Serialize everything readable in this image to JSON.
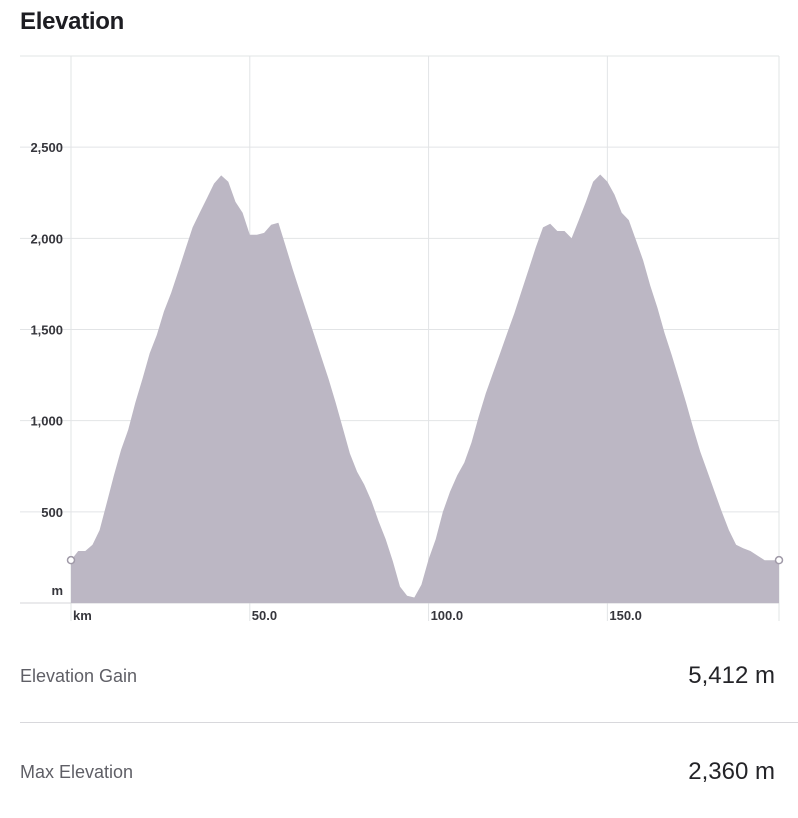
{
  "title": "Elevation",
  "chart_data": {
    "type": "area",
    "x": [
      0,
      2,
      4,
      6,
      8,
      10,
      12,
      14,
      16,
      18,
      20,
      22,
      24,
      26,
      28,
      30,
      32,
      34,
      36,
      38,
      40,
      42,
      44,
      46,
      48,
      50,
      52,
      54,
      56,
      58,
      60,
      62,
      64,
      66,
      68,
      70,
      72,
      74,
      76,
      78,
      80,
      82,
      84,
      86,
      88,
      90,
      92,
      94,
      96,
      98,
      100,
      102,
      104,
      106,
      108,
      110,
      112,
      114,
      116,
      118,
      120,
      122,
      124,
      126,
      128,
      130,
      132,
      134,
      136,
      138,
      140,
      142,
      144,
      146,
      148,
      150,
      152,
      154,
      156,
      158,
      160,
      162,
      164,
      166,
      168,
      170,
      172,
      174,
      176,
      178,
      180,
      182,
      184,
      186,
      188,
      190,
      192,
      194,
      196,
      198
    ],
    "values": [
      235,
      285,
      285,
      320,
      400,
      550,
      700,
      840,
      950,
      1100,
      1230,
      1370,
      1470,
      1600,
      1700,
      1820,
      1940,
      2060,
      2140,
      2220,
      2300,
      2345,
      2310,
      2200,
      2140,
      2020,
      2020,
      2030,
      2075,
      2085,
      1960,
      1830,
      1710,
      1590,
      1470,
      1350,
      1230,
      1100,
      960,
      820,
      720,
      650,
      560,
      450,
      350,
      230,
      90,
      40,
      30,
      100,
      240,
      350,
      500,
      610,
      700,
      770,
      880,
      1020,
      1150,
      1260,
      1370,
      1480,
      1590,
      1710,
      1830,
      1950,
      2060,
      2080,
      2040,
      2040,
      2000,
      2100,
      2200,
      2310,
      2350,
      2310,
      2240,
      2140,
      2100,
      1990,
      1880,
      1740,
      1620,
      1480,
      1360,
      1230,
      1100,
      960,
      830,
      720,
      610,
      500,
      400,
      320,
      300,
      285,
      260,
      235,
      235,
      235
    ],
    "xlim": [
      0,
      198
    ],
    "ylim": [
      0,
      3000
    ],
    "y_ticks": [
      500,
      1000,
      1500,
      2000,
      2500
    ],
    "y_tick_labels": [
      "500",
      "1,000",
      "1,500",
      "2,000",
      "2,500"
    ],
    "y_unit_label": "m",
    "x_ticks": [
      0,
      50,
      100,
      150
    ],
    "x_tick_labels": [
      "km",
      "50.0",
      "100.0",
      "150.0"
    ],
    "grid": true,
    "fill_color": "#bcb7c4",
    "grid_color": "#e2e4e6"
  },
  "stats": {
    "gain_label": "Elevation Gain",
    "gain_value": "5,412 m",
    "max_label": "Max Elevation",
    "max_value": "2,360 m"
  }
}
